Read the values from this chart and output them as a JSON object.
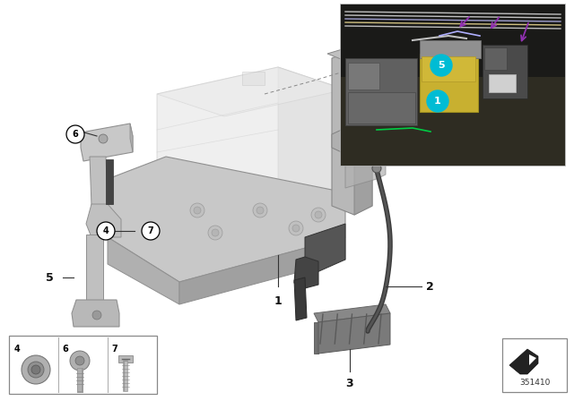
{
  "bg_color": "#ffffff",
  "diagram_number": "351410",
  "gray_light": "#d4d4d4",
  "gray_mid": "#b0b0b0",
  "gray_dark": "#808080",
  "gray_vdark": "#555555",
  "cable_color": "#3a3a3a",
  "photo_border": "#cccccc",
  "label_color": "#111111",
  "dashed_color": "#888888",
  "circle_border": "#111111"
}
